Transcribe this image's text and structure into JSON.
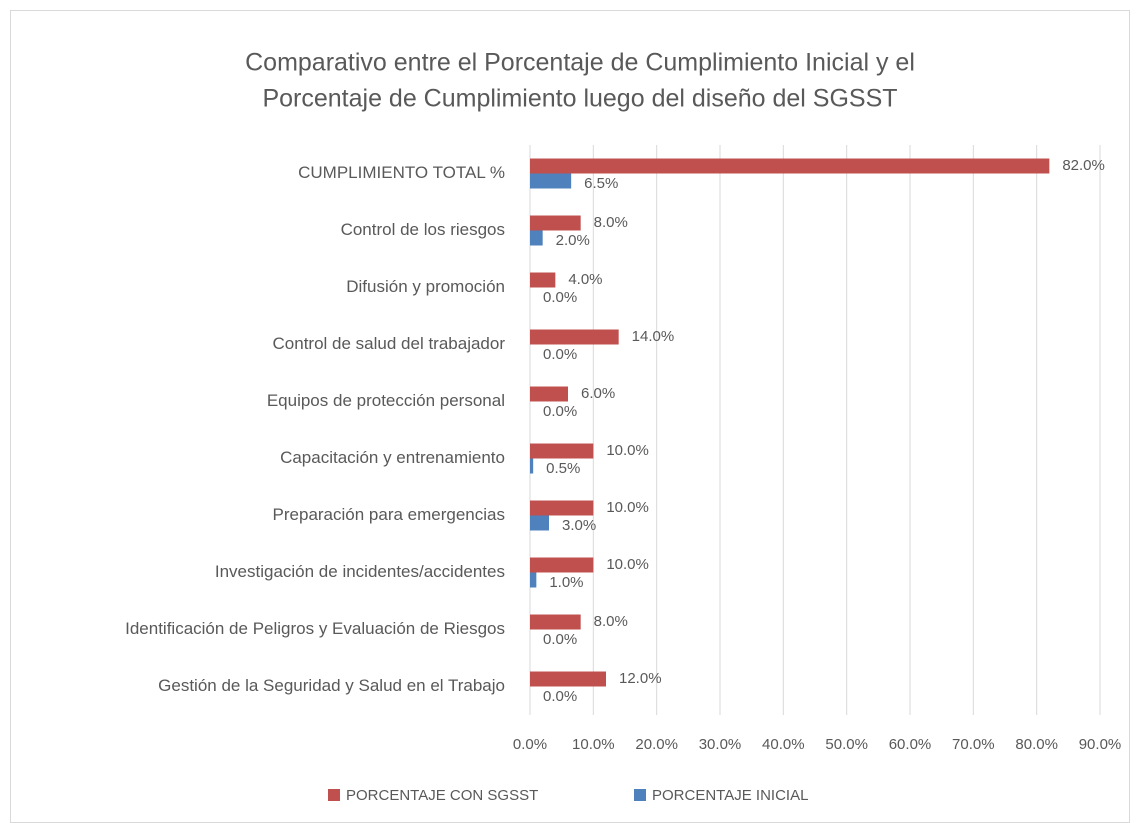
{
  "chart_data": {
    "type": "hbar",
    "title": [
      "Comparativo entre el Porcentaje de Cumplimiento Inicial y el",
      "Porcentaje de Cumplimiento luego del diseño del SGSST"
    ],
    "categories": [
      "CUMPLIMIENTO TOTAL %",
      "Control de los riesgos",
      "Difusión y promoción",
      "Control de salud del trabajador",
      "Equipos de protección personal",
      "Capacitación y entrenamiento",
      "Preparación para emergencias",
      "Investigación de incidentes/accidentes",
      "Identificación de Peligros y Evaluación de Riesgos",
      "Gestión de la Seguridad y Salud en el Trabajo"
    ],
    "series": [
      {
        "name": "PORCENTAJE CON SGSST",
        "color": "#c0504d",
        "values": [
          82,
          8,
          4,
          14,
          6,
          10,
          10,
          10,
          8,
          12
        ],
        "value_labels": [
          "82.0%",
          "8.0%",
          "4.0%",
          "14.0%",
          "6.0%",
          "10.0%",
          "10.0%",
          "10.0%",
          "8.0%",
          "12.0%"
        ]
      },
      {
        "name": "PORCENTAJE INICIAL",
        "color": "#4f81bd",
        "values": [
          6.5,
          2,
          0,
          0,
          0,
          0.5,
          3,
          1,
          0,
          0
        ],
        "value_labels": [
          "6.5%",
          "2.0%",
          "0.0%",
          "0.0%",
          "0.0%",
          "0.5%",
          "3.0%",
          "1.0%",
          "0.0%",
          "0.0%"
        ]
      }
    ],
    "xlim": [
      0,
      90
    ],
    "xticks": [
      {
        "value": 0,
        "label": "0.0%"
      },
      {
        "value": 10,
        "label": "10.0%"
      },
      {
        "value": 20,
        "label": "20.0%"
      },
      {
        "value": 30,
        "label": "30.0%"
      },
      {
        "value": 40,
        "label": "40.0%"
      },
      {
        "value": 50,
        "label": "50.0%"
      },
      {
        "value": 60,
        "label": "60.0%"
      },
      {
        "value": 70,
        "label": "70.0%"
      },
      {
        "value": 80,
        "label": "80.0%"
      },
      {
        "value": 90,
        "label": "90.0%"
      }
    ],
    "grid": true,
    "legend": "bottom"
  }
}
